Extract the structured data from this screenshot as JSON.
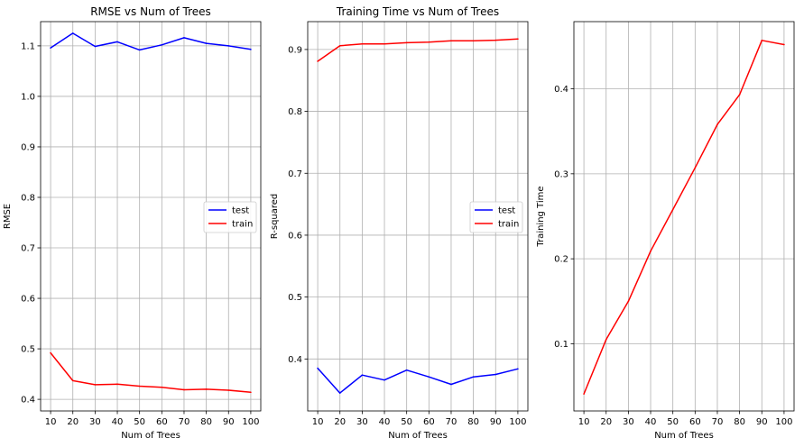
{
  "chart_data": [
    {
      "type": "line",
      "title": "RMSE vs Num of Trees",
      "xlabel": "Num of Trees",
      "ylabel": "RMSE",
      "x": [
        10,
        20,
        30,
        40,
        50,
        60,
        70,
        80,
        90,
        100
      ],
      "xticks": [
        10,
        20,
        30,
        40,
        50,
        60,
        70,
        80,
        90,
        100
      ],
      "yticks": [
        "0.4",
        "0.5",
        "0.6",
        "0.7",
        "0.8",
        "0.9",
        "1.0",
        "1.1"
      ],
      "ylim": [
        0.377,
        1.148
      ],
      "grid": true,
      "legend": "center-right",
      "series": [
        {
          "name": "test",
          "color": "#0000ff",
          "values": [
            1.096,
            1.125,
            1.099,
            1.108,
            1.092,
            1.102,
            1.116,
            1.105,
            1.1,
            1.093
          ]
        },
        {
          "name": "train",
          "color": "#ff0000",
          "values": [
            0.492,
            0.437,
            0.429,
            0.43,
            0.426,
            0.424,
            0.419,
            0.42,
            0.418,
            0.414
          ]
        }
      ]
    },
    {
      "type": "line",
      "title": "Training Time vs Num of Trees",
      "xlabel": "Num of Trees",
      "ylabel": "R-squared",
      "x": [
        10,
        20,
        30,
        40,
        50,
        60,
        70,
        80,
        90,
        100
      ],
      "xticks": [
        10,
        20,
        30,
        40,
        50,
        60,
        70,
        80,
        90,
        100
      ],
      "yticks": [
        "0.4",
        "0.5",
        "0.6",
        "0.7",
        "0.8",
        "0.9"
      ],
      "ylim": [
        0.316,
        0.945
      ],
      "grid": true,
      "legend": "center-right",
      "series": [
        {
          "name": "test",
          "color": "#0000ff",
          "values": [
            0.385,
            0.345,
            0.374,
            0.366,
            0.382,
            0.371,
            0.359,
            0.371,
            0.375,
            0.384
          ]
        },
        {
          "name": "train",
          "color": "#ff0000",
          "values": [
            0.881,
            0.906,
            0.909,
            0.909,
            0.911,
            0.912,
            0.914,
            0.914,
            0.915,
            0.917
          ]
        }
      ]
    },
    {
      "type": "line",
      "title": "",
      "xlabel": "Num of Trees",
      "ylabel": "Training Time",
      "x": [
        10,
        20,
        30,
        40,
        50,
        60,
        70,
        80,
        90,
        100
      ],
      "xticks": [
        10,
        20,
        30,
        40,
        50,
        60,
        70,
        80,
        90,
        100
      ],
      "yticks": [
        "0.1",
        "0.2",
        "0.3",
        "0.4"
      ],
      "ylim": [
        0.021,
        0.479
      ],
      "grid": true,
      "legend": "none",
      "series": [
        {
          "color": "#ff0000",
          "values": [
            0.041,
            0.105,
            0.15,
            0.209,
            0.258,
            0.307,
            0.358,
            0.393,
            0.457,
            0.452
          ]
        }
      ]
    }
  ]
}
